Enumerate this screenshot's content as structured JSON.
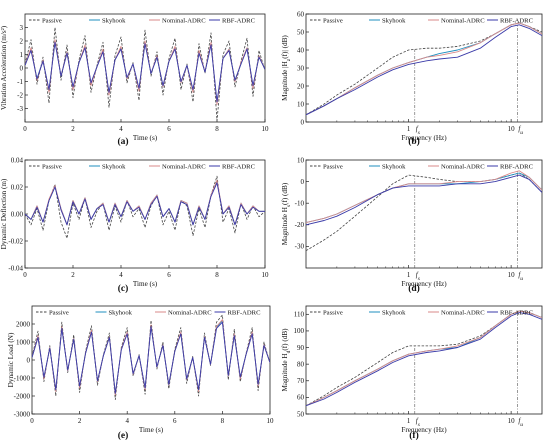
{
  "legend": [
    "Passive",
    "Skyhook",
    "Nominal-ADRC",
    "RBF-ADRC"
  ],
  "series_colors": {
    "Passive": "#444444",
    "Skyhook": "#1f8fbf",
    "Nominal-ADRC": "#d98a8a",
    "RBF-ADRC": "#3a3aa8"
  },
  "chart_data": [
    {
      "type": "line",
      "panel_label": "(a)",
      "xlabel": "Time (s)",
      "ylabel": "Vibration Acceleration (m/s²)",
      "xlim": [
        0,
        10
      ],
      "ylim": [
        -4,
        4
      ],
      "xticks": [
        0,
        2,
        4,
        6,
        8,
        10
      ],
      "yticks": [
        -3,
        -2,
        -1,
        0,
        1,
        2,
        3
      ],
      "x": [
        0,
        0.25,
        0.5,
        0.75,
        1,
        1.25,
        1.5,
        1.75,
        2,
        2.25,
        2.5,
        2.75,
        3,
        3.25,
        3.5,
        3.75,
        4,
        4.25,
        4.5,
        4.75,
        5,
        5.25,
        5.5,
        5.75,
        6,
        6.25,
        6.5,
        6.75,
        7,
        7.25,
        7.5,
        7.75,
        8,
        8.25,
        8.5,
        8.75,
        9,
        9.25,
        9.5,
        9.75,
        10
      ],
      "series": [
        {
          "name": "Passive",
          "values": [
            0.3,
            2.1,
            -1.2,
            0.8,
            -2.6,
            3.0,
            -0.9,
            1.7,
            -2.2,
            0.6,
            2.4,
            -1.8,
            0.2,
            1.9,
            -2.9,
            0.9,
            2.3,
            -1.1,
            0.4,
            -2.4,
            2.8,
            -0.6,
            1.2,
            -2.0,
            0.7,
            2.2,
            -1.6,
            0.3,
            -2.5,
            1.8,
            -0.4,
            2.6,
            -3.9,
            1.0,
            2.0,
            -1.4,
            0.5,
            2.2,
            -2.1,
            1.3,
            -0.2
          ]
        },
        {
          "name": "Skyhook",
          "values": [
            0.2,
            1.4,
            -0.8,
            0.6,
            -1.7,
            2.0,
            -0.6,
            1.2,
            -1.5,
            0.4,
            1.6,
            -1.2,
            0.1,
            1.3,
            -1.9,
            0.6,
            1.5,
            -0.8,
            0.3,
            -1.6,
            1.9,
            -0.4,
            0.8,
            -1.4,
            0.5,
            1.5,
            -1.1,
            0.2,
            -1.7,
            1.2,
            -0.3,
            1.8,
            -2.6,
            0.7,
            1.4,
            -0.9,
            0.3,
            1.5,
            -1.4,
            0.9,
            -0.1
          ]
        },
        {
          "name": "Nominal-ADRC",
          "values": [
            0.2,
            1.5,
            -0.9,
            0.6,
            -1.8,
            2.1,
            -0.6,
            1.2,
            -1.6,
            0.4,
            1.7,
            -1.3,
            0.1,
            1.4,
            -2.0,
            0.6,
            1.6,
            -0.8,
            0.3,
            -1.7,
            2.0,
            -0.4,
            0.9,
            -1.4,
            0.5,
            1.6,
            -1.1,
            0.2,
            -1.8,
            1.3,
            -0.3,
            1.9,
            -2.7,
            0.7,
            1.4,
            -1.0,
            0.4,
            1.5,
            -1.5,
            0.9,
            -0.1
          ]
        },
        {
          "name": "RBF-ADRC",
          "values": [
            0.2,
            1.3,
            -0.8,
            0.5,
            -1.6,
            1.9,
            -0.6,
            1.1,
            -1.4,
            0.4,
            1.5,
            -1.1,
            0.1,
            1.2,
            -1.8,
            0.6,
            1.4,
            -0.7,
            0.3,
            -1.5,
            1.8,
            -0.4,
            0.8,
            -1.3,
            0.5,
            1.4,
            -1.0,
            0.2,
            -1.6,
            1.1,
            -0.3,
            1.7,
            -2.5,
            0.7,
            1.3,
            -0.9,
            0.3,
            1.4,
            -1.3,
            0.8,
            -0.1
          ]
        }
      ]
    },
    {
      "type": "line",
      "panel_label": "(b)",
      "xlabel": "Frequency (Hz)",
      "ylabel": "Magnitude |H_z(f)| (dB)",
      "xscale": "log",
      "xlim": [
        0.1,
        20
      ],
      "ylim": [
        0,
        60
      ],
      "xticks": [
        1,
        10
      ],
      "yticks": [
        0,
        10,
        20,
        30,
        40,
        50,
        60
      ],
      "markers": [
        {
          "label": "f_s",
          "x": 1.15
        },
        {
          "label": "f_u",
          "x": 11.5
        }
      ],
      "x": [
        0.1,
        0.15,
        0.2,
        0.3,
        0.5,
        0.7,
        1,
        1.5,
        2,
        3,
        5,
        7,
        10,
        12,
        15,
        20
      ],
      "series": [
        {
          "name": "Passive",
          "values": [
            4,
            10,
            15,
            21,
            30,
            36,
            40,
            41,
            41,
            42,
            45,
            49,
            54,
            55,
            53,
            50
          ]
        },
        {
          "name": "Skyhook",
          "values": [
            4,
            9,
            13,
            19,
            26,
            30,
            33,
            36,
            38,
            40,
            44,
            49,
            54,
            55,
            53,
            49
          ]
        },
        {
          "name": "Nominal-ADRC",
          "values": [
            4,
            9,
            13,
            19,
            26,
            30,
            33,
            36,
            37,
            39,
            44,
            49,
            54,
            55,
            53,
            49
          ]
        },
        {
          "name": "RBF-ADRC",
          "values": [
            4,
            9,
            13,
            18,
            25,
            29,
            32,
            34,
            35,
            36,
            41,
            47,
            53,
            54,
            52,
            48
          ]
        }
      ]
    },
    {
      "type": "line",
      "panel_label": "(c)",
      "xlabel": "Time (s)",
      "ylabel": "Dynamic Deflection (m)",
      "xlim": [
        0,
        10
      ],
      "ylim": [
        -0.04,
        0.04
      ],
      "xticks": [
        0,
        2,
        4,
        6,
        8,
        10
      ],
      "yticks": [
        -0.04,
        -0.02,
        0,
        0.02,
        0.04
      ],
      "yticklabels": [
        "-0.04",
        "-0.02",
        "0.00",
        "0.02",
        "0.04"
      ],
      "x": [
        0,
        0.25,
        0.5,
        0.75,
        1,
        1.25,
        1.5,
        1.75,
        2,
        2.25,
        2.5,
        2.75,
        3,
        3.25,
        3.5,
        3.75,
        4,
        4.25,
        4.5,
        4.75,
        5,
        5.25,
        5.5,
        5.75,
        6,
        6.25,
        6.5,
        6.75,
        7,
        7.25,
        7.5,
        7.75,
        8,
        8.25,
        8.5,
        8.75,
        9,
        9.25,
        9.5,
        9.75,
        10
      ],
      "series": [
        {
          "name": "Passive",
          "values": [
            0.0,
            -0.008,
            0.004,
            -0.012,
            0.01,
            0.022,
            -0.006,
            -0.018,
            0.008,
            -0.004,
            0.012,
            -0.01,
            0.002,
            0.008,
            -0.012,
            0.006,
            -0.006,
            0.01,
            -0.002,
            0.004,
            -0.01,
            0.006,
            0.014,
            -0.008,
            0.002,
            -0.012,
            0.01,
            0.006,
            -0.016,
            0.004,
            -0.01,
            0.014,
            0.028,
            -0.006,
            0.004,
            -0.014,
            0.008,
            -0.004,
            0.006,
            -0.002,
            0.002
          ]
        },
        {
          "name": "Skyhook",
          "values": [
            0.0,
            -0.004,
            0.006,
            -0.006,
            0.01,
            0.02,
            0.004,
            -0.008,
            0.01,
            0.0,
            0.012,
            -0.004,
            0.004,
            0.008,
            -0.006,
            0.008,
            -0.002,
            0.01,
            0.002,
            0.006,
            -0.004,
            0.008,
            0.014,
            -0.002,
            0.004,
            -0.006,
            0.01,
            0.008,
            -0.008,
            0.006,
            -0.004,
            0.014,
            0.024,
            0.0,
            0.006,
            -0.008,
            0.008,
            0.0,
            0.006,
            0.002,
            0.002
          ]
        },
        {
          "name": "Nominal-ADRC",
          "values": [
            0.0,
            -0.004,
            0.006,
            -0.006,
            0.011,
            0.021,
            0.004,
            -0.008,
            0.01,
            0.0,
            0.012,
            -0.004,
            0.004,
            0.008,
            -0.006,
            0.008,
            -0.002,
            0.01,
            0.002,
            0.006,
            -0.004,
            0.008,
            0.014,
            -0.002,
            0.004,
            -0.006,
            0.01,
            0.008,
            -0.008,
            0.006,
            -0.004,
            0.014,
            0.025,
            0.0,
            0.006,
            -0.008,
            0.008,
            0.0,
            0.006,
            0.002,
            0.002
          ]
        },
        {
          "name": "RBF-ADRC",
          "values": [
            0.0,
            -0.004,
            0.005,
            -0.006,
            0.01,
            0.02,
            0.003,
            -0.008,
            0.009,
            0.0,
            0.011,
            -0.004,
            0.004,
            0.007,
            -0.006,
            0.007,
            -0.002,
            0.009,
            0.002,
            0.005,
            -0.004,
            0.007,
            0.013,
            -0.002,
            0.004,
            -0.006,
            0.009,
            0.007,
            -0.008,
            0.005,
            -0.004,
            0.013,
            0.023,
            0.0,
            0.005,
            -0.008,
            0.007,
            0.0,
            0.005,
            0.002,
            0.002
          ]
        }
      ]
    },
    {
      "type": "line",
      "panel_label": "(d)",
      "xlabel": "Frequency (Hz)",
      "ylabel": "Magnitude H_s(f) (dB)",
      "xscale": "log",
      "xlim": [
        0.1,
        20
      ],
      "ylim": [
        -40,
        10
      ],
      "xticks": [
        1,
        10
      ],
      "yticks": [
        -30,
        -20,
        -10,
        0,
        10
      ],
      "markers": [
        {
          "label": "f_s",
          "x": 1.15
        },
        {
          "label": "f_u",
          "x": 11.5
        }
      ],
      "x": [
        0.1,
        0.15,
        0.2,
        0.3,
        0.5,
        0.7,
        1,
        1.5,
        2,
        3,
        5,
        7,
        10,
        12,
        15,
        20
      ],
      "series": [
        {
          "name": "Passive",
          "values": [
            -32,
            -27,
            -23,
            -16,
            -7,
            -1,
            3,
            2,
            1,
            0,
            0,
            1,
            3,
            4,
            1,
            -5
          ]
        },
        {
          "name": "Skyhook",
          "values": [
            -19,
            -17,
            -15,
            -11,
            -6,
            -3,
            -1,
            -1,
            -1,
            -1,
            0,
            1,
            3,
            4,
            2,
            -4
          ]
        },
        {
          "name": "Nominal-ADRC",
          "values": [
            -19,
            -17,
            -15,
            -11,
            -6,
            -3,
            -1,
            -1,
            -1,
            0,
            0,
            1,
            4,
            5,
            2,
            -4
          ]
        },
        {
          "name": "RBF-ADRC",
          "values": [
            -20,
            -18,
            -16,
            -12,
            -6,
            -3,
            -2,
            -2,
            -2,
            -1,
            -1,
            0,
            2,
            3,
            1,
            -5
          ]
        }
      ]
    },
    {
      "type": "line",
      "panel_label": "(e)",
      "xlabel": "Time (s)",
      "ylabel": "Dynamic Load (N)",
      "xlim": [
        0,
        10
      ],
      "ylim": [
        -3000,
        3000
      ],
      "xticks": [
        0,
        2,
        4,
        6,
        8,
        10
      ],
      "yticks": [
        -3000,
        -2000,
        -1000,
        0,
        1000,
        2000
      ],
      "x": [
        0,
        0.25,
        0.5,
        0.75,
        1,
        1.25,
        1.5,
        1.75,
        2,
        2.25,
        2.5,
        2.75,
        3,
        3.25,
        3.5,
        3.75,
        4,
        4.25,
        4.5,
        4.75,
        5,
        5.25,
        5.5,
        5.75,
        6,
        6.25,
        6.5,
        6.75,
        7,
        7.25,
        7.5,
        7.75,
        8,
        8.25,
        8.5,
        8.75,
        9,
        9.25,
        9.5,
        9.75,
        10
      ],
      "series": [
        {
          "name": "Passive",
          "values": [
            200,
            1600,
            -1200,
            800,
            -2000,
            2100,
            -700,
            1400,
            -1800,
            500,
            1900,
            -1400,
            300,
            1500,
            -2200,
            700,
            1800,
            -900,
            300,
            -1900,
            2200,
            -500,
            1000,
            -1600,
            600,
            1800,
            -1300,
            200,
            -2000,
            1500,
            -300,
            2100,
            2500,
            -1100,
            1700,
            -1200,
            400,
            1800,
            -1700,
            1000,
            -200
          ]
        },
        {
          "name": "Skyhook",
          "values": [
            150,
            1300,
            -1000,
            700,
            -1700,
            1800,
            -600,
            1200,
            -1500,
            400,
            1600,
            -1200,
            250,
            1300,
            -1900,
            600,
            1500,
            -800,
            250,
            -1600,
            1900,
            -400,
            850,
            -1400,
            500,
            1500,
            -1100,
            150,
            -1700,
            1300,
            -250,
            1800,
            2200,
            -900,
            1400,
            -1000,
            350,
            1500,
            -1400,
            850,
            -150
          ]
        },
        {
          "name": "Nominal-ADRC",
          "values": [
            150,
            1350,
            -1050,
            700,
            -1750,
            1850,
            -600,
            1200,
            -1550,
            400,
            1650,
            -1200,
            250,
            1300,
            -1950,
            600,
            1550,
            -800,
            250,
            -1650,
            1950,
            -400,
            850,
            -1400,
            500,
            1550,
            -1100,
            150,
            -1750,
            1300,
            -250,
            1850,
            2250,
            -900,
            1450,
            -1050,
            350,
            1550,
            -1450,
            850,
            -150
          ]
        },
        {
          "name": "RBF-ADRC",
          "values": [
            140,
            1250,
            -950,
            650,
            -1650,
            1750,
            -550,
            1150,
            -1450,
            380,
            1550,
            -1150,
            240,
            1250,
            -1850,
            560,
            1450,
            -750,
            240,
            -1550,
            1850,
            -380,
            800,
            -1350,
            480,
            1450,
            -1050,
            140,
            -1650,
            1250,
            -240,
            1750,
            2100,
            -850,
            1350,
            -950,
            330,
            1450,
            -1350,
            800,
            -140
          ]
        }
      ]
    },
    {
      "type": "line",
      "panel_label": "(f)",
      "xlabel": "Frequency (Hz)",
      "ylabel": "Magnitude H_d(f) (dB)",
      "xscale": "log",
      "xlim": [
        0.1,
        20
      ],
      "ylim": [
        50,
        115
      ],
      "xticks": [
        1,
        10
      ],
      "yticks": [
        50,
        60,
        70,
        80,
        90,
        100,
        110
      ],
      "markers": [
        {
          "label": "f_s",
          "x": 1.15
        },
        {
          "label": "f_u",
          "x": 11.5
        }
      ],
      "x": [
        0.1,
        0.15,
        0.2,
        0.3,
        0.5,
        0.7,
        1,
        1.5,
        2,
        3,
        5,
        7,
        10,
        12,
        15,
        20
      ],
      "series": [
        {
          "name": "Passive",
          "values": [
            55,
            61,
            66,
            72,
            81,
            87,
            91,
            91,
            91,
            92,
            97,
            103,
            110,
            112,
            111,
            108
          ]
        },
        {
          "name": "Skyhook",
          "values": [
            55,
            60,
            64,
            70,
            77,
            82,
            86,
            88,
            89,
            90,
            96,
            103,
            110,
            112,
            111,
            108
          ]
        },
        {
          "name": "Nominal-ADRC",
          "values": [
            55,
            60,
            64,
            70,
            77,
            82,
            86,
            88,
            89,
            91,
            96,
            103,
            110,
            112,
            111,
            108
          ]
        },
        {
          "name": "RBF-ADRC",
          "values": [
            55,
            59,
            63,
            69,
            76,
            81,
            85,
            87,
            88,
            90,
            95,
            102,
            109,
            111,
            110,
            107
          ]
        }
      ]
    }
  ]
}
